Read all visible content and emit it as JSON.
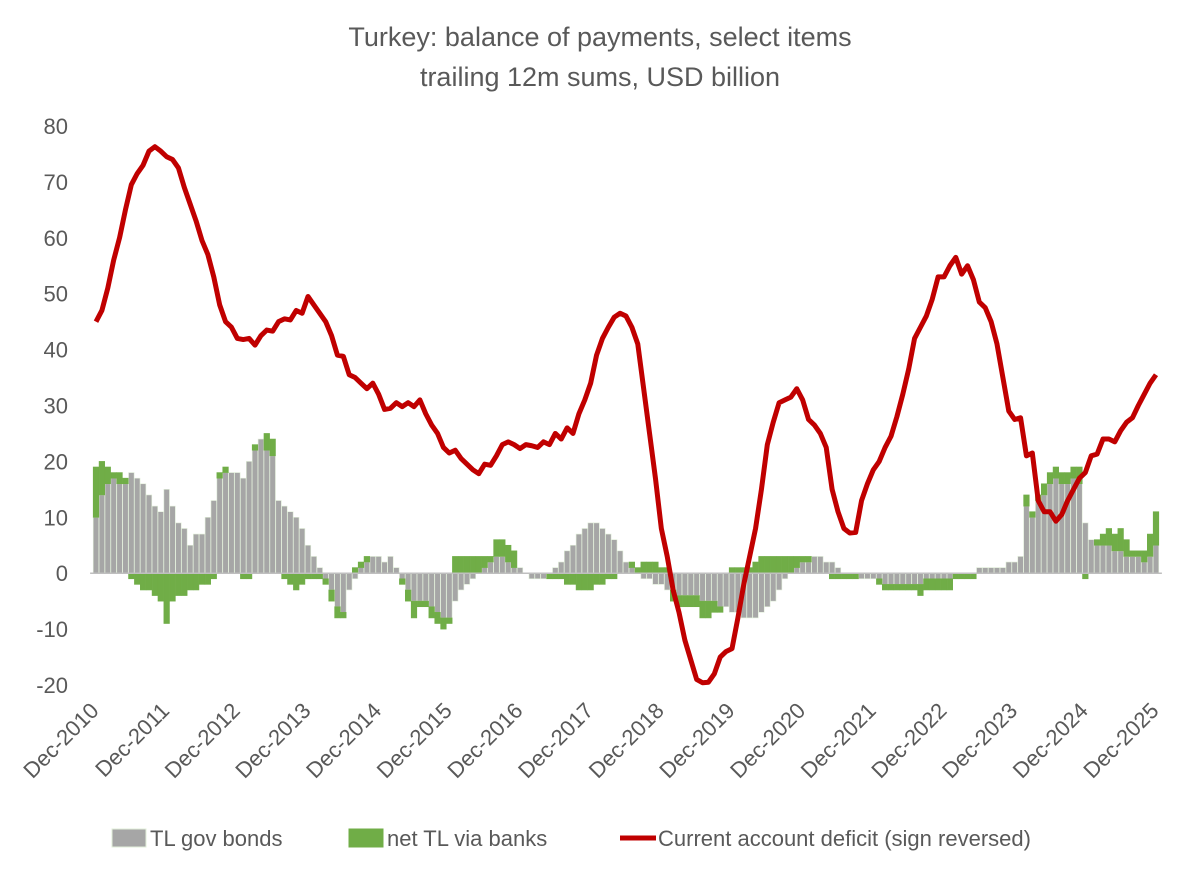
{
  "chart_data": {
    "type": "bar",
    "title": "Turkey: balance of payments, select items",
    "subtitle": "trailing 12m sums, USD billion",
    "categories": [
      "Dec-2010",
      null,
      null,
      null,
      null,
      null,
      null,
      null,
      null,
      null,
      null,
      null,
      "Dec-2011",
      null,
      null,
      null,
      null,
      null,
      null,
      null,
      null,
      null,
      null,
      null,
      "Dec-2012",
      null,
      null,
      null,
      null,
      null,
      null,
      null,
      null,
      null,
      null,
      null,
      "Dec-2013",
      null,
      null,
      null,
      null,
      null,
      null,
      null,
      null,
      null,
      null,
      null,
      "Dec-2014",
      null,
      null,
      null,
      null,
      null,
      null,
      null,
      null,
      null,
      null,
      null,
      "Dec-2015",
      null,
      null,
      null,
      null,
      null,
      null,
      null,
      null,
      null,
      null,
      null,
      "Dec-2016",
      null,
      null,
      null,
      null,
      null,
      null,
      null,
      null,
      null,
      null,
      null,
      "Dec-2017",
      null,
      null,
      null,
      null,
      null,
      null,
      null,
      null,
      null,
      null,
      null,
      "Dec-2018",
      null,
      null,
      null,
      null,
      null,
      null,
      null,
      null,
      null,
      null,
      null,
      "Dec-2019",
      null,
      null,
      null,
      null,
      null,
      null,
      null,
      null,
      null,
      null,
      null,
      "Dec-2020",
      null,
      null,
      null,
      null,
      null,
      null,
      null,
      null,
      null,
      null,
      null,
      "Dec-2021",
      null,
      null,
      null,
      null,
      null,
      null,
      null,
      null,
      null,
      null,
      null,
      "Dec-2022",
      null,
      null,
      null,
      null,
      null,
      null,
      null,
      null,
      null,
      null,
      null,
      "Dec-2023",
      null,
      null,
      null,
      null,
      null,
      null,
      null,
      null,
      null,
      null,
      null,
      "Dec-2024",
      null,
      null,
      null,
      null,
      null,
      null,
      null,
      null,
      null,
      null,
      null,
      "Dec-2025"
    ],
    "series": [
      {
        "name": "TL gov bonds",
        "type": "bar",
        "color": "#a6a6a6",
        "values": [
          10,
          14,
          16,
          17,
          16,
          16,
          18,
          17,
          16,
          14,
          12,
          11,
          15,
          12,
          9,
          8,
          5,
          7,
          7,
          10,
          13,
          17,
          18,
          18,
          18,
          17,
          20,
          22,
          24,
          22,
          21,
          13,
          12,
          11,
          10,
          8,
          5,
          3,
          1,
          -1,
          -3,
          -6,
          -7,
          -3,
          -1,
          1,
          2,
          3,
          3,
          2,
          3,
          1,
          -1,
          -3,
          -5,
          -5,
          -5,
          -6,
          -7,
          -8,
          -8,
          -5,
          -3,
          -2,
          -1,
          0,
          1,
          2,
          3,
          3,
          2,
          1,
          1,
          0,
          -1,
          -1,
          -1,
          0,
          1,
          2,
          4,
          5,
          7,
          8,
          9,
          9,
          8,
          7,
          6,
          4,
          2,
          1,
          0,
          -1,
          -1,
          -2,
          -2,
          -3,
          -3,
          -4,
          -4,
          -4,
          -4,
          -5,
          -5,
          -5,
          -6,
          -6,
          -7,
          -7,
          -8,
          -8,
          -8,
          -7,
          -6,
          -5,
          -3,
          -1,
          0,
          1,
          2,
          2,
          3,
          3,
          2,
          2,
          1,
          0,
          0,
          0,
          -1,
          -1,
          -1,
          -1,
          -2,
          -2,
          -2,
          -2,
          -2,
          -2,
          -2,
          -1,
          -1,
          -1,
          -1,
          -1,
          0,
          0,
          0,
          0,
          1,
          1,
          1,
          1,
          1,
          2,
          2,
          3,
          12,
          10,
          13,
          14,
          16,
          17,
          16,
          16,
          17,
          16,
          9,
          6,
          5,
          5,
          5,
          4,
          4,
          3,
          3,
          3,
          2,
          3,
          5
        ]
      },
      {
        "name": "net TL via banks",
        "type": "bar",
        "color": "#70ad47",
        "values": [
          9,
          6,
          3,
          1,
          2,
          1,
          -1,
          -2,
          -3,
          -3,
          -4,
          -5,
          -9,
          -5,
          -4,
          -4,
          -3,
          -3,
          -2,
          -2,
          -1,
          1,
          1,
          0,
          0,
          -1,
          -1,
          1,
          0,
          3,
          3,
          0,
          -1,
          -2,
          -3,
          -2,
          -1,
          -1,
          -1,
          -1,
          -2,
          -2,
          -1,
          0,
          1,
          1,
          1,
          0,
          0,
          0,
          0,
          0,
          -1,
          -2,
          -3,
          -1,
          -1,
          -2,
          -2,
          -2,
          -1,
          3,
          3,
          3,
          3,
          3,
          2,
          1,
          3,
          3,
          3,
          3,
          0,
          0,
          0,
          0,
          0,
          -1,
          -1,
          -1,
          -2,
          -2,
          -3,
          -3,
          -3,
          -2,
          -2,
          -1,
          -1,
          0,
          0,
          1,
          1,
          2,
          2,
          2,
          1,
          1,
          -2,
          -2,
          -2,
          -2,
          -2,
          -3,
          -3,
          -2,
          -1,
          0,
          1,
          1,
          1,
          1,
          2,
          3,
          3,
          3,
          3,
          3,
          3,
          2,
          1,
          1,
          0,
          0,
          0,
          -1,
          -1,
          -1,
          -1,
          -1,
          0,
          0,
          0,
          -1,
          -1,
          -1,
          -1,
          -1,
          -1,
          -1,
          -2,
          -2,
          -2,
          -2,
          -2,
          -2,
          -1,
          -1,
          -1,
          -1,
          0,
          0,
          0,
          0,
          0,
          0,
          0,
          0,
          2,
          1,
          1,
          2,
          2,
          2,
          2,
          2,
          2,
          3,
          -1,
          0,
          1,
          2,
          3,
          3,
          4,
          3,
          1,
          1,
          2,
          4,
          6
        ]
      },
      {
        "name": "Current account deficit (sign reversed)",
        "type": "line",
        "color": "#c00000",
        "values": [
          45,
          47,
          51,
          56,
          60,
          65,
          69.5,
          71.5,
          73,
          75.5,
          76.3,
          75.5,
          74.5,
          74,
          72.5,
          69,
          66,
          63,
          59.5,
          57,
          53,
          48,
          45,
          44,
          42,
          41.8,
          42,
          40.8,
          42.5,
          43.5,
          43.3,
          45,
          45.5,
          45.3,
          47,
          46.5,
          49.5,
          48,
          46.5,
          45,
          42.5,
          39,
          38.8,
          35.5,
          35,
          34,
          33,
          34,
          32,
          29.3,
          29.5,
          30.5,
          29.8,
          30.5,
          29.8,
          31,
          28.5,
          26.5,
          25,
          22.5,
          21.5,
          22,
          20.5,
          19.5,
          18.5,
          17.8,
          19.5,
          19.3,
          21,
          23,
          23.5,
          23,
          22.3,
          23,
          22.8,
          22.5,
          23.5,
          23,
          25,
          24,
          26,
          25,
          28.5,
          31,
          34,
          39,
          42,
          44,
          45.8,
          46.5,
          46,
          44,
          41,
          33,
          25,
          17,
          8,
          3,
          -3,
          -7,
          -12,
          -15.5,
          -19,
          -19.6,
          -19.5,
          -18,
          -15,
          -14,
          -13.5,
          -8,
          -2,
          3,
          8,
          15,
          23,
          27,
          30.5,
          31,
          31.5,
          33,
          31,
          27.5,
          26.5,
          25,
          22.5,
          15,
          11,
          8,
          7.2,
          7.3,
          13,
          16,
          18.5,
          20,
          22.5,
          24.5,
          28,
          32,
          36.5,
          42,
          44,
          46,
          49,
          53,
          53,
          55,
          56.5,
          53.5,
          55,
          52.5,
          48.5,
          47.5,
          45,
          41,
          35,
          29,
          27.5,
          27.8,
          21,
          21.5,
          13,
          11,
          11,
          9.3,
          10.5,
          13,
          15,
          17,
          18,
          21,
          21.3,
          24,
          24,
          23.5,
          25.5,
          27,
          27.8,
          30,
          32,
          34,
          35.5
        ]
      }
    ],
    "ylim": [
      -20,
      80
    ],
    "yticks": [
      -20,
      -10,
      0,
      10,
      20,
      30,
      40,
      50,
      60,
      70,
      80
    ],
    "grid": false,
    "legend": "bottom"
  }
}
